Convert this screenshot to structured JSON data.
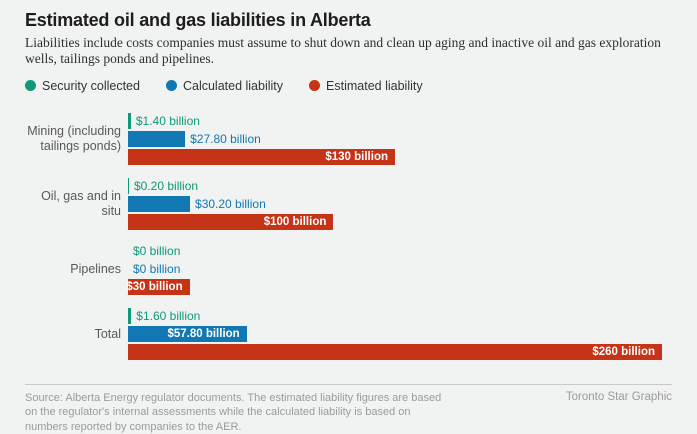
{
  "header": {
    "title": "Estimated oil and gas liabilities in Alberta",
    "subtitle": "Liabilities include costs companies must assume to shut down and clean up aging and inactive oil and gas exploration wells, tailings ponds and pipelines."
  },
  "legend": [
    {
      "label": "Security collected",
      "color": "#0f9879"
    },
    {
      "label": "Calculated liability",
      "color": "#1178b4"
    },
    {
      "label": "Estimated liability",
      "color": "#c53417"
    }
  ],
  "chart_data": {
    "type": "bar",
    "orientation": "horizontal",
    "unit": "billions of dollars",
    "xlim": [
      0,
      260
    ],
    "grid": false,
    "legend_position": "top",
    "categories": [
      "Mining (including tailings ponds)",
      "Oil, gas and in situ",
      "Pipelines",
      "Total"
    ],
    "series": [
      {
        "name": "Security collected",
        "color": "#0f9879",
        "values": [
          1.4,
          0.2,
          0,
          1.6
        ],
        "labels": [
          "$1.40 billion",
          "$0.20 billion",
          "$0 billion",
          "$1.60 billion"
        ],
        "label_inside": [
          false,
          false,
          false,
          false
        ]
      },
      {
        "name": "Calculated liability",
        "color": "#1178b4",
        "values": [
          27.8,
          30.2,
          0,
          57.8
        ],
        "labels": [
          "$27.80 billion",
          "$30.20 billion",
          "$0 billion",
          "$57.80 billion"
        ],
        "label_inside": [
          false,
          false,
          false,
          true
        ]
      },
      {
        "name": "Estimated liability",
        "color": "#c53417",
        "values": [
          130,
          100,
          30,
          260
        ],
        "labels": [
          "$130 billion",
          "$100 billion",
          "$30 billion",
          "$260 billion"
        ],
        "label_inside": [
          true,
          true,
          true,
          true
        ]
      }
    ]
  },
  "footer": {
    "source": "Source: Alberta Energy regulator documents. The estimated liability figures are based on the regulator's internal assessments while the calculated liability is based on numbers reported by companies to the AER.",
    "credit": "Toronto Star Graphic"
  }
}
